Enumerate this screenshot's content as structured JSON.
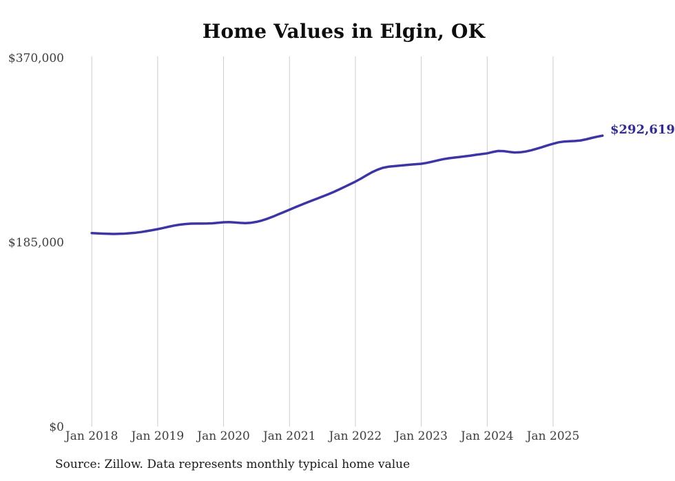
{
  "chart": {
    "title": "Home Values in Elgin, OK",
    "end_label": "$292,619",
    "source": "Source: Zillow. Data represents monthly typical home value"
  },
  "chart_data": {
    "type": "line",
    "title": "Home Values in Elgin, OK",
    "series_name": "Monthly typical home value (ZHVI)",
    "x": [
      "Jan 2018",
      "Feb 2018",
      "Mar 2018",
      "Apr 2018",
      "May 2018",
      "Jun 2018",
      "Jul 2018",
      "Aug 2018",
      "Sep 2018",
      "Oct 2018",
      "Nov 2018",
      "Dec 2018",
      "Jan 2019",
      "Feb 2019",
      "Mar 2019",
      "Apr 2019",
      "May 2019",
      "Jun 2019",
      "Jul 2019",
      "Aug 2019",
      "Sep 2019",
      "Oct 2019",
      "Nov 2019",
      "Dec 2019",
      "Jan 2020",
      "Feb 2020",
      "Mar 2020",
      "Apr 2020",
      "May 2020",
      "Jun 2020",
      "Jul 2020",
      "Aug 2020",
      "Sep 2020",
      "Oct 2020",
      "Nov 2020",
      "Dec 2020",
      "Jan 2021",
      "Feb 2021",
      "Mar 2021",
      "Apr 2021",
      "May 2021",
      "Jun 2021",
      "Jul 2021",
      "Aug 2021",
      "Sep 2021",
      "Oct 2021",
      "Nov 2021",
      "Dec 2021",
      "Jan 2022",
      "Feb 2022",
      "Mar 2022",
      "Apr 2022",
      "May 2022",
      "Jun 2022",
      "Jul 2022",
      "Aug 2022",
      "Sep 2022",
      "Oct 2022",
      "Nov 2022",
      "Dec 2022",
      "Jan 2023",
      "Feb 2023",
      "Mar 2023",
      "Apr 2023",
      "May 2023",
      "Jun 2023",
      "Jul 2023",
      "Aug 2023",
      "Sep 2023",
      "Oct 2023",
      "Nov 2023",
      "Dec 2023",
      "Jan 2024",
      "Feb 2024",
      "Mar 2024",
      "Apr 2024",
      "May 2024",
      "Jun 2024",
      "Jul 2024",
      "Aug 2024",
      "Sep 2024",
      "Oct 2024",
      "Nov 2024",
      "Dec 2024",
      "Jan 2025",
      "Feb 2025",
      "Mar 2025",
      "Apr 2025",
      "May 2025",
      "Jun 2025",
      "Jul 2025",
      "Aug 2025",
      "Sep 2025",
      "Oct 2025"
    ],
    "values": [
      194900,
      194600,
      194300,
      194100,
      194000,
      194100,
      194300,
      194700,
      195200,
      195900,
      196800,
      197800,
      198800,
      200000,
      201200,
      202400,
      203300,
      203900,
      204300,
      204400,
      204400,
      204500,
      204700,
      205200,
      205700,
      205900,
      205600,
      205100,
      204900,
      205200,
      206100,
      207500,
      209300,
      211400,
      213700,
      216000,
      218300,
      220600,
      222900,
      225100,
      227300,
      229400,
      231500,
      233700,
      236000,
      238500,
      241100,
      243800,
      246500,
      249500,
      252700,
      255800,
      258400,
      260300,
      261400,
      262000,
      262500,
      263000,
      263500,
      264000,
      264400,
      265300,
      266500,
      267800,
      269000,
      269900,
      270600,
      271200,
      271900,
      272600,
      273400,
      274100,
      274900,
      276200,
      277200,
      277100,
      276300,
      275700,
      275900,
      276700,
      277900,
      279400,
      281100,
      282900,
      284500,
      285900,
      286700,
      287000,
      287200,
      287800,
      288900,
      290300,
      291500,
      292619
    ],
    "ylim": [
      0,
      370000
    ],
    "yticks": [
      {
        "value": 370000,
        "label": "$370,000"
      },
      {
        "value": 185000,
        "label": "$185,000"
      },
      {
        "value": 0,
        "label": "$0"
      }
    ],
    "xticks": [
      {
        "month_index": 0,
        "label": "Jan 2018"
      },
      {
        "month_index": 12,
        "label": "Jan 2019"
      },
      {
        "month_index": 24,
        "label": "Jan 2020"
      },
      {
        "month_index": 36,
        "label": "Jan 2021"
      },
      {
        "month_index": 48,
        "label": "Jan 2022"
      },
      {
        "month_index": 60,
        "label": "Jan 2023"
      },
      {
        "month_index": 72,
        "label": "Jan 2024"
      },
      {
        "month_index": 84,
        "label": "Jan 2025"
      }
    ],
    "grid": "vertical-only",
    "legend": "none",
    "line_color": "#3c35a4",
    "grid_color": "#cbcbcb",
    "axis_label_color": "#3e3e3e",
    "end_label": "$292,619",
    "end_label_color": "#322c90",
    "source": "Source: Zillow. Data represents monthly typical home value"
  }
}
